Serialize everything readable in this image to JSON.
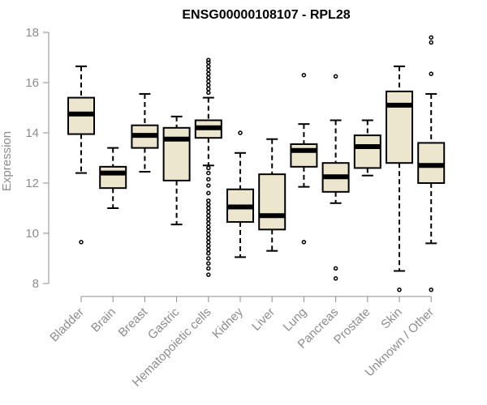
{
  "chart_data": {
    "type": "boxplot",
    "title": "ENSG00000108107 - RPL28",
    "ylabel": "Expression",
    "xlabel": "",
    "ylim": [
      7.6,
      18.3
    ],
    "yticks": [
      8,
      10,
      12,
      14,
      16,
      18
    ],
    "grid": false,
    "colors": {
      "box_fill": "#ede6cf",
      "stroke": "#000000",
      "axis": "#8c8c8c"
    },
    "categories": [
      "Bladder",
      "Brain",
      "Breast",
      "Gastric",
      "Hematopoietic cells",
      "Kidney",
      "Liver",
      "Lung",
      "Pancreas",
      "Prostate",
      "Skin",
      "Unknown / Other"
    ],
    "boxes": [
      {
        "category": "Bladder",
        "whisker_low": 12.4,
        "q1": 13.95,
        "median": 14.75,
        "q3": 15.4,
        "whisker_high": 16.65,
        "outliers": [
          9.65
        ]
      },
      {
        "category": "Brain",
        "whisker_low": 11.0,
        "q1": 11.8,
        "median": 12.4,
        "q3": 12.65,
        "whisker_high": 13.4,
        "outliers": []
      },
      {
        "category": "Breast",
        "whisker_low": 12.45,
        "q1": 13.4,
        "median": 13.9,
        "q3": 14.3,
        "whisker_high": 15.55,
        "outliers": []
      },
      {
        "category": "Gastric",
        "whisker_low": 10.35,
        "q1": 12.1,
        "median": 13.75,
        "q3": 14.2,
        "whisker_high": 14.65,
        "outliers": []
      },
      {
        "category": "Hematopoietic cells",
        "whisker_low": 12.7,
        "q1": 13.8,
        "median": 14.2,
        "q3": 14.5,
        "whisker_high": 15.4,
        "outliers": [
          8.35,
          8.6,
          8.8,
          9.0,
          9.2,
          9.35,
          9.5,
          9.65,
          9.8,
          9.95,
          10.1,
          10.25,
          10.4,
          10.55,
          10.7,
          10.85,
          11.0,
          11.15,
          11.3,
          11.6,
          11.9,
          12.15,
          12.4,
          12.6,
          15.6,
          15.75,
          15.9,
          16.05,
          16.2,
          16.35,
          16.5,
          16.65,
          16.8,
          16.9
        ]
      },
      {
        "category": "Kidney",
        "whisker_low": 9.05,
        "q1": 10.45,
        "median": 11.05,
        "q3": 11.75,
        "whisker_high": 13.2,
        "outliers": [
          14.0
        ]
      },
      {
        "category": "Liver",
        "whisker_low": 9.3,
        "q1": 10.15,
        "median": 10.7,
        "q3": 12.35,
        "whisker_high": 13.75,
        "outliers": []
      },
      {
        "category": "Lung",
        "whisker_low": 11.85,
        "q1": 12.65,
        "median": 13.3,
        "q3": 13.55,
        "whisker_high": 14.35,
        "outliers": [
          9.65,
          16.3
        ]
      },
      {
        "category": "Pancreas",
        "whisker_low": 11.2,
        "q1": 11.65,
        "median": 12.25,
        "q3": 12.8,
        "whisker_high": 14.5,
        "outliers": [
          8.2,
          8.6,
          16.25
        ]
      },
      {
        "category": "Prostate",
        "whisker_low": 12.3,
        "q1": 12.6,
        "median": 13.45,
        "q3": 13.9,
        "whisker_high": 14.5,
        "outliers": []
      },
      {
        "category": "Skin",
        "whisker_low": 8.5,
        "q1": 12.8,
        "median": 15.1,
        "q3": 15.65,
        "whisker_high": 16.65,
        "outliers": [
          7.75
        ]
      },
      {
        "category": "Unknown / Other",
        "whisker_low": 9.6,
        "q1": 12.0,
        "median": 12.7,
        "q3": 13.6,
        "whisker_high": 15.55,
        "outliers": [
          7.75,
          16.35,
          17.6,
          17.8
        ]
      }
    ]
  }
}
